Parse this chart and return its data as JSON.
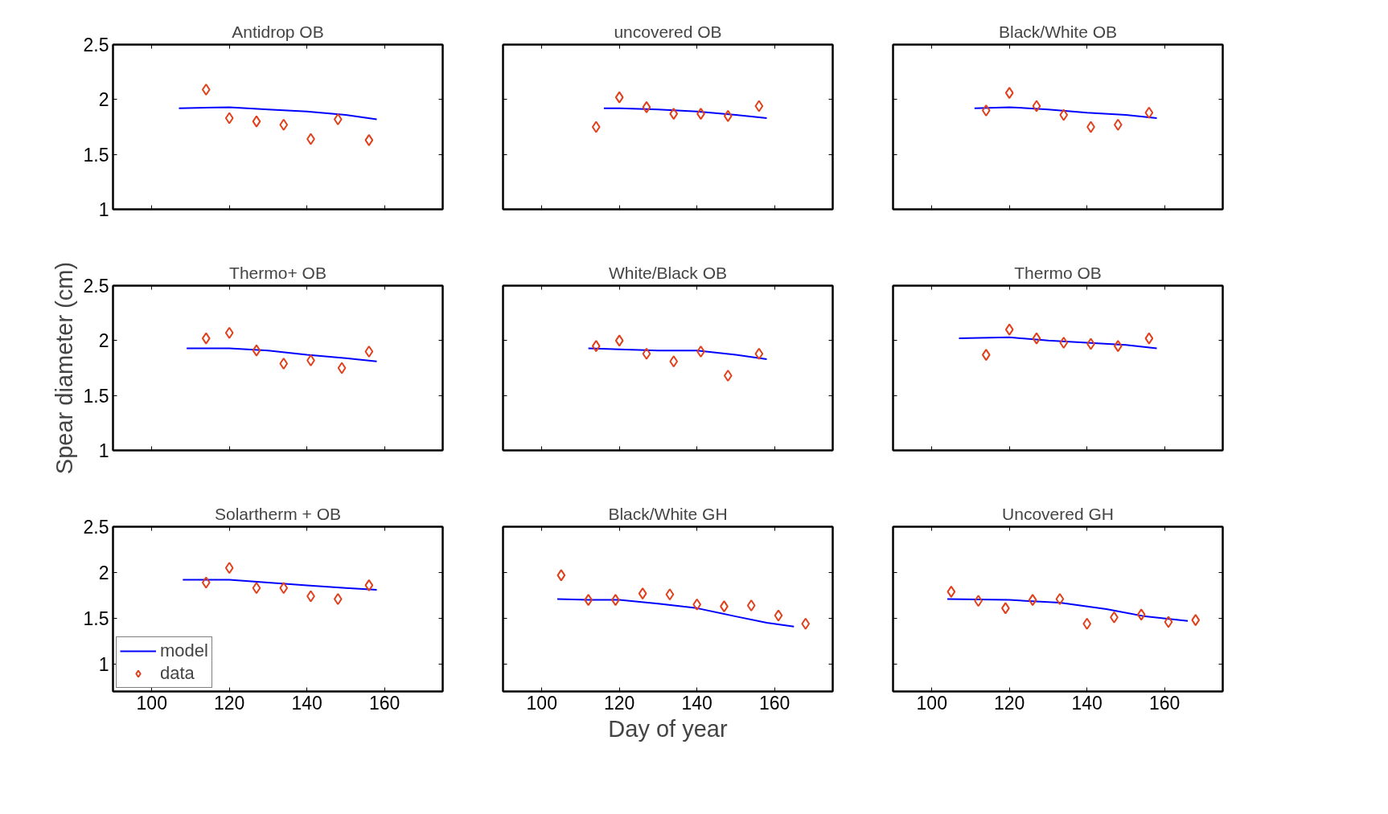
{
  "chart_data": [
    {
      "type": "line",
      "title": "Antidrop OB",
      "xlim": [
        90,
        175
      ],
      "ylim": [
        1,
        2.5
      ],
      "xticks": [
        100,
        120,
        140,
        160
      ],
      "yticks": [
        1,
        1.5,
        2,
        2.5
      ],
      "tick_labels": "y",
      "grid": false,
      "series": [
        {
          "color": "#0000ff",
          "x": [
            107,
            120,
            130,
            140,
            150,
            158
          ],
          "values": [
            1.92,
            1.93,
            1.91,
            1.89,
            1.86,
            1.82
          ]
        },
        {
          "type": "scatter",
          "marker": "diamond",
          "color": "#e0401c",
          "x": [
            114,
            120,
            127,
            134,
            141,
            148,
            156
          ],
          "values": [
            2.09,
            1.83,
            1.8,
            1.77,
            1.64,
            1.82,
            1.63
          ]
        }
      ]
    },
    {
      "type": "line",
      "title": "uncovered OB",
      "xlim": [
        90,
        175
      ],
      "ylim": [
        1,
        2.5
      ],
      "xticks": [
        100,
        120,
        140,
        160
      ],
      "yticks": [
        1,
        1.5,
        2,
        2.5
      ],
      "tick_labels": false,
      "grid": false,
      "series": [
        {
          "color": "#0000ff",
          "x": [
            116,
            120,
            130,
            140,
            150,
            158
          ],
          "values": [
            1.92,
            1.92,
            1.91,
            1.89,
            1.86,
            1.83
          ]
        },
        {
          "type": "scatter",
          "marker": "diamond",
          "color": "#e0401c",
          "x": [
            114,
            120,
            127,
            134,
            141,
            148,
            156
          ],
          "values": [
            1.75,
            2.02,
            1.93,
            1.87,
            1.87,
            1.85,
            1.94
          ]
        }
      ]
    },
    {
      "type": "line",
      "title": "Black/White OB",
      "xlim": [
        90,
        175
      ],
      "ylim": [
        1,
        2.5
      ],
      "xticks": [
        100,
        120,
        140,
        160
      ],
      "yticks": [
        1,
        1.5,
        2,
        2.5
      ],
      "tick_labels": false,
      "grid": false,
      "series": [
        {
          "color": "#0000ff",
          "x": [
            111,
            120,
            130,
            140,
            150,
            158
          ],
          "values": [
            1.92,
            1.93,
            1.91,
            1.88,
            1.86,
            1.83
          ]
        },
        {
          "type": "scatter",
          "marker": "diamond",
          "color": "#e0401c",
          "x": [
            114,
            120,
            127,
            134,
            141,
            148,
            156
          ],
          "values": [
            1.9,
            2.06,
            1.94,
            1.86,
            1.75,
            1.77,
            1.88
          ]
        }
      ]
    },
    {
      "type": "line",
      "title": "Thermo+ OB",
      "ylabel": "Spear diameter (cm)",
      "xlim": [
        90,
        175
      ],
      "ylim": [
        1,
        2.5
      ],
      "xticks": [
        100,
        120,
        140,
        160
      ],
      "yticks": [
        1,
        1.5,
        2,
        2.5
      ],
      "tick_labels": "y",
      "grid": false,
      "series": [
        {
          "color": "#0000ff",
          "x": [
            109,
            120,
            130,
            140,
            150,
            158
          ],
          "values": [
            1.93,
            1.93,
            1.91,
            1.87,
            1.84,
            1.81
          ]
        },
        {
          "type": "scatter",
          "marker": "diamond",
          "color": "#e0401c",
          "x": [
            114,
            120,
            127,
            134,
            141,
            149,
            156
          ],
          "values": [
            2.02,
            2.07,
            1.91,
            1.79,
            1.82,
            1.75,
            1.9
          ]
        }
      ]
    },
    {
      "type": "line",
      "title": "White/Black OB",
      "xlim": [
        90,
        175
      ],
      "ylim": [
        1,
        2.5
      ],
      "xticks": [
        100,
        120,
        140,
        160
      ],
      "yticks": [
        1,
        1.5,
        2,
        2.5
      ],
      "tick_labels": false,
      "grid": false,
      "series": [
        {
          "color": "#0000ff",
          "x": [
            112,
            120,
            130,
            140,
            150,
            158
          ],
          "values": [
            1.93,
            1.92,
            1.91,
            1.91,
            1.87,
            1.83
          ]
        },
        {
          "type": "scatter",
          "marker": "diamond",
          "color": "#e0401c",
          "x": [
            114,
            120,
            127,
            134,
            141,
            148,
            156
          ],
          "values": [
            1.95,
            2.0,
            1.88,
            1.81,
            1.9,
            1.68,
            1.88
          ]
        }
      ]
    },
    {
      "type": "line",
      "title": "Thermo OB",
      "xlim": [
        90,
        175
      ],
      "ylim": [
        1,
        2.5
      ],
      "xticks": [
        100,
        120,
        140,
        160
      ],
      "yticks": [
        1,
        1.5,
        2,
        2.5
      ],
      "tick_labels": false,
      "grid": false,
      "series": [
        {
          "color": "#0000ff",
          "x": [
            107,
            120,
            130,
            140,
            150,
            158
          ],
          "values": [
            2.02,
            2.03,
            2.0,
            1.98,
            1.96,
            1.93
          ]
        },
        {
          "type": "scatter",
          "marker": "diamond",
          "color": "#e0401c",
          "x": [
            114,
            120,
            127,
            134,
            141,
            148,
            156
          ],
          "values": [
            1.87,
            2.1,
            2.02,
            1.98,
            1.97,
            1.95,
            2.02
          ]
        }
      ]
    },
    {
      "type": "line",
      "title": "Solartherm + OB",
      "xlim": [
        90,
        175
      ],
      "ylim": [
        0.7,
        2.5
      ],
      "xticks": [
        100,
        120,
        140,
        160
      ],
      "yticks": [
        1,
        1.5,
        2,
        2.5
      ],
      "grid": false,
      "legend": "bottom left",
      "series": [
        {
          "name": "model",
          "color": "#0000ff",
          "x": [
            108,
            120,
            130,
            140,
            150,
            158
          ],
          "values": [
            1.92,
            1.92,
            1.89,
            1.86,
            1.83,
            1.81
          ]
        },
        {
          "type": "scatter",
          "name": "data",
          "marker": "diamond",
          "color": "#e0401c",
          "x": [
            114,
            120,
            127,
            134,
            141,
            148,
            156
          ],
          "values": [
            1.89,
            2.05,
            1.83,
            1.83,
            1.74,
            1.71,
            1.86
          ]
        }
      ]
    },
    {
      "type": "line",
      "title": "Black/White GH",
      "xlabel": "Day of year",
      "xlim": [
        90,
        175
      ],
      "ylim": [
        0.7,
        2.5
      ],
      "xticks": [
        100,
        120,
        140,
        160
      ],
      "yticks": [
        1,
        1.5,
        2,
        2.5
      ],
      "tick_labels": "x",
      "grid": false,
      "series": [
        {
          "color": "#0000ff",
          "x": [
            104,
            112,
            120,
            130,
            140,
            150,
            158,
            165
          ],
          "values": [
            1.71,
            1.7,
            1.7,
            1.66,
            1.61,
            1.52,
            1.45,
            1.41
          ]
        },
        {
          "type": "scatter",
          "marker": "diamond",
          "color": "#e0401c",
          "x": [
            105,
            112,
            119,
            126,
            133,
            140,
            147,
            154,
            161,
            168
          ],
          "values": [
            1.97,
            1.7,
            1.7,
            1.77,
            1.76,
            1.65,
            1.63,
            1.64,
            1.53,
            1.44
          ]
        }
      ]
    },
    {
      "type": "line",
      "title": "Uncovered GH",
      "xlim": [
        90,
        175
      ],
      "ylim": [
        0.7,
        2.5
      ],
      "xticks": [
        100,
        120,
        140,
        160
      ],
      "yticks": [
        1,
        1.5,
        2,
        2.5
      ],
      "tick_labels": "x",
      "grid": false,
      "series": [
        {
          "color": "#0000ff",
          "x": [
            104,
            120,
            133,
            145,
            155,
            166
          ],
          "values": [
            1.71,
            1.7,
            1.67,
            1.6,
            1.52,
            1.47
          ]
        },
        {
          "type": "scatter",
          "marker": "diamond",
          "color": "#e0401c",
          "x": [
            105,
            112,
            119,
            126,
            133,
            140,
            147,
            154,
            161,
            168
          ],
          "values": [
            1.79,
            1.69,
            1.61,
            1.7,
            1.71,
            1.44,
            1.51,
            1.54,
            1.46,
            1.48
          ]
        }
      ]
    }
  ]
}
